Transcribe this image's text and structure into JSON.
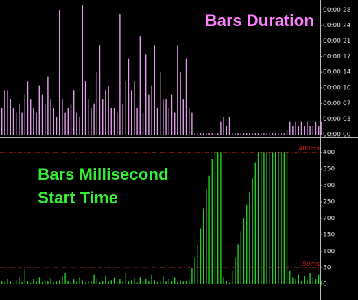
{
  "chart_data": [
    {
      "type": "bar",
      "title": "Bars Duration",
      "color": "#e49cec",
      "title_color": "#ff80ff",
      "ylim": [
        -0.6,
        30.2
      ],
      "yticks": [
        {
          "value": 0,
          "label": "00:00:00"
        },
        {
          "value": 3.5,
          "label": "00:00:03"
        },
        {
          "value": 7,
          "label": "00:00:07"
        },
        {
          "value": 10.5,
          "label": "00:00:10"
        },
        {
          "value": 14,
          "label": "00:00:14"
        },
        {
          "value": 17.5,
          "label": "00:00:17"
        },
        {
          "value": 21,
          "label": "00:00:21"
        },
        {
          "value": 24.5,
          "label": "00:00:24"
        },
        {
          "value": 28,
          "label": "00:00:28"
        }
      ],
      "values": [
        6,
        10,
        10,
        8,
        6,
        5,
        7,
        5,
        9,
        12,
        8,
        6,
        5,
        11,
        9,
        7,
        13,
        8,
        6,
        4,
        28,
        8,
        5,
        6,
        7,
        10,
        5,
        4,
        29,
        12,
        8,
        6,
        7,
        14,
        20,
        8,
        10,
        11,
        6,
        6,
        5,
        27,
        7,
        12,
        17,
        10,
        12,
        6,
        22,
        5,
        18,
        9,
        11,
        20,
        6,
        14,
        8,
        8,
        6,
        9,
        5,
        20,
        14,
        8,
        17,
        6,
        5,
        0.3,
        0.3,
        0.3,
        0.3,
        0.3,
        0.3,
        0.3,
        0.3,
        0.3,
        3,
        4,
        2,
        4,
        0.3,
        0.3,
        0.3,
        0.3,
        0.3,
        0.3,
        0.3,
        0.3,
        0.3,
        0.3,
        0.3,
        0.3,
        0.3,
        0.3,
        0.3,
        0.3,
        0.3,
        0.3,
        0.3,
        1,
        3,
        2,
        3,
        2,
        3,
        2,
        3,
        2,
        2,
        3,
        2,
        3
      ]
    },
    {
      "type": "bar",
      "title_lines": [
        "Bars Millisecond",
        "Start Time"
      ],
      "color": "#1fd11f",
      "title_color": "#33ee33",
      "ylim": [
        -48,
        440
      ],
      "yticks": [
        0,
        50,
        100,
        150,
        200,
        250,
        300,
        350,
        400
      ],
      "levels": [
        {
          "value": 400,
          "label": "400ms"
        },
        {
          "value": 50,
          "label": "50ms"
        }
      ],
      "level_color": "#c82020",
      "values": [
        10,
        5,
        15,
        8,
        3,
        12,
        20,
        6,
        45,
        10,
        4,
        15,
        8,
        20,
        6,
        12,
        10,
        18,
        5,
        8,
        12,
        25,
        35,
        10,
        6,
        14,
        8,
        20,
        12,
        5,
        10,
        8,
        30,
        15,
        6,
        10,
        25,
        8,
        12,
        20,
        6,
        15,
        10,
        35,
        8,
        12,
        18,
        5,
        20,
        10,
        15,
        8,
        30,
        12,
        6,
        10,
        25,
        8,
        15,
        10,
        20,
        6,
        12,
        8,
        10,
        15,
        50,
        80,
        120,
        170,
        230,
        290,
        330,
        380,
        400,
        400,
        400,
        20,
        10,
        5,
        40,
        80,
        120,
        160,
        200,
        240,
        280,
        320,
        370,
        400,
        400,
        400,
        400,
        400,
        400,
        400,
        400,
        400,
        400,
        400,
        40,
        20,
        15,
        30,
        10,
        25,
        12,
        35,
        20,
        15,
        30,
        10
      ]
    }
  ]
}
